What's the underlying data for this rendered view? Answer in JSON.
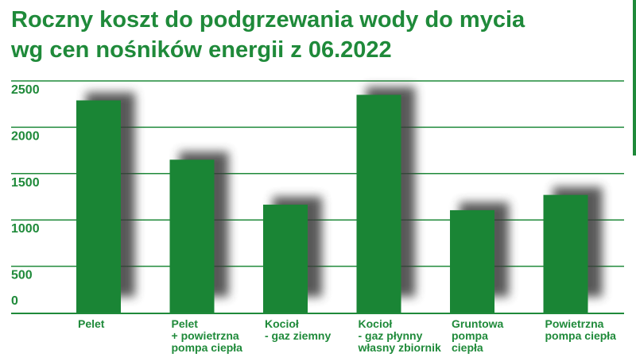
{
  "title_line1": "Roczny koszt do podgrzewania wody do mycia",
  "title_line2": "wg cen nośników energii z 06.2022",
  "colors": {
    "accent": "#1f8a3a",
    "bar": "#1a8535",
    "shadow": "#3a3a3a",
    "axis": "#1f8a3a"
  },
  "chart_data": {
    "type": "bar",
    "title": "Roczny koszt do podgrzewania wody do mycia wg cen nośników energii z 06.2022",
    "categories": [
      [
        "Pelet"
      ],
      [
        "Pelet",
        "+ powietrzna",
        "pompa ciepła"
      ],
      [
        "Kocioł",
        "- gaz ziemny"
      ],
      [
        "Kocioł",
        "- gaz płynny",
        "własny zbiornik"
      ],
      [
        "Gruntowa",
        "pompa",
        "ciepła"
      ],
      [
        "Powietrzna",
        "pompa ciepła"
      ]
    ],
    "values": [
      2290,
      1650,
      1165,
      2350,
      1105,
      1270
    ],
    "yticks": [
      0,
      500,
      1000,
      1500,
      2000,
      2500
    ],
    "ylim": [
      0,
      2500
    ],
    "grid": true
  }
}
